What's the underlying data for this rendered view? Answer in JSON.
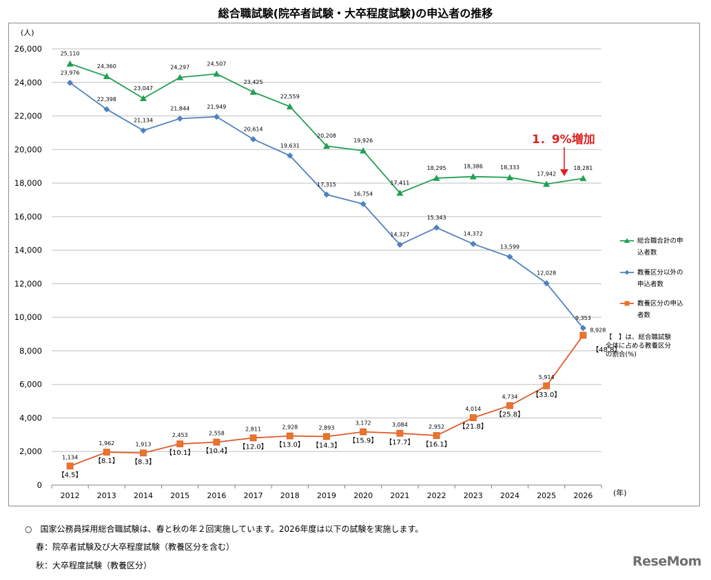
{
  "chart_data": {
    "type": "line",
    "title": "総合職試験(院卒者試験・大卒程度試験)の申込者の推移",
    "ylabel": "(人)",
    "xlabel": "(年)",
    "ylim": [
      0,
      26000
    ],
    "yticks": [
      0,
      2000,
      4000,
      6000,
      8000,
      10000,
      12000,
      14000,
      16000,
      18000,
      20000,
      22000,
      24000,
      26000
    ],
    "ytick_labels": [
      "0",
      "2,000",
      "4,000",
      "6,000",
      "8,000",
      "10,000",
      "12,000",
      "14,000",
      "16,000",
      "18,000",
      "20,000",
      "22,000",
      "24,000",
      "26,000"
    ],
    "grid": true,
    "legend_position": "right",
    "categories": [
      "2012",
      "2013",
      "2014",
      "2015",
      "2016",
      "2017",
      "2018",
      "2019",
      "2020",
      "2021",
      "2022",
      "2023",
      "2024",
      "2025",
      "2026"
    ],
    "series": [
      {
        "name": "総合職合計の申込者数",
        "legend_lines": [
          "総合職合計の申",
          "込者数"
        ],
        "color": "#22a052",
        "marker": "triangle",
        "values": [
          25110,
          24360,
          23047,
          24297,
          24507,
          23425,
          22559,
          20208,
          19926,
          17411,
          18295,
          18386,
          18333,
          17942,
          18281
        ],
        "labels": [
          "25,110",
          "24,360",
          "23,047",
          "24,297",
          "24,507",
          "23,425",
          "22,559",
          "20,208",
          "19,926",
          "17,411",
          "18,295",
          "18,386",
          "18,333",
          "17,942",
          "18,281"
        ]
      },
      {
        "name": "教養区分以外の申込者数",
        "legend_lines": [
          "教養区分以外の",
          "申込者数"
        ],
        "color": "#4f81bd",
        "marker": "diamond",
        "values": [
          23976,
          22398,
          21134,
          21844,
          21949,
          20614,
          19631,
          17315,
          16754,
          14327,
          15343,
          14372,
          13599,
          12028,
          9353
        ],
        "labels": [
          "23,976",
          "22,398",
          "21,134",
          "21,844",
          "21,949",
          "20,614",
          "19,631",
          "17,315",
          "16,754",
          "14,327",
          "15,343",
          "14,372",
          "13,599",
          "12,028",
          "9,353"
        ]
      },
      {
        "name": "教養区分の申込者数",
        "legend_lines": [
          "教養区分の申込",
          "者数"
        ],
        "color": "#e05a28",
        "marker_fill": "#e8752a",
        "marker": "square",
        "values": [
          1134,
          1962,
          1913,
          2453,
          2558,
          2811,
          2928,
          2893,
          3172,
          3084,
          2952,
          4014,
          4734,
          5914,
          8928
        ],
        "labels": [
          "1,134",
          "1,962",
          "1,913",
          "2,453",
          "2,558",
          "2,811",
          "2,928",
          "2,893",
          "3,172",
          "3,084",
          "2,952",
          "4,014",
          "4,734",
          "5,914",
          "8,928"
        ],
        "ratios": [
          "【4.5】",
          "【8.1】",
          "【8.3】",
          "【10.1】",
          "【10.4】",
          "【12.0】",
          "【13.0】",
          "【14.3】",
          "【15.9】",
          "【17.7】",
          "【16.1】",
          "【21.8】",
          "【25.8】",
          "【33.0】",
          "【48.8】"
        ]
      }
    ],
    "annotations": {
      "increase_label": "1．9%増加",
      "increase_color": "#e02020",
      "ratio_note_lines": [
        "【　】は、総合職試験",
        "全体に占める教養区分",
        "の割合(%)"
      ]
    }
  },
  "notes": {
    "line1": "○　国家公務員採用総合職試験は、春と秋の年２回実施しています。2026年度は以下の試験を実施します。",
    "line2": "春：院卒者試験及び大卒程度試験（教養区分を含む）",
    "line3": "秋：大卒程度試験（教養区分）"
  },
  "logo_text": "ReseMom"
}
